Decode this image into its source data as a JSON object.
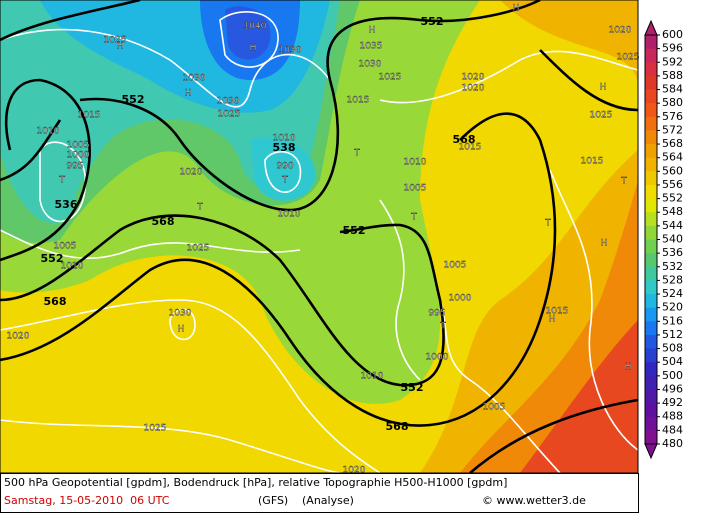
{
  "map": {
    "labels": [
      "552",
      "H",
      "H",
      "1040",
      "H",
      "1030",
      "1025",
      "H",
      "1035",
      "1030",
      "1030",
      "H",
      "552",
      "1030",
      "1025",
      "1015",
      "1010",
      "1005",
      "1000",
      "995",
      "T",
      "536",
      "538",
      "1010",
      "990",
      "T",
      "1020",
      "T",
      "1010",
      "568",
      "1025",
      "552",
      "1005",
      "552",
      "1010",
      "568",
      "1030",
      "H",
      "1020",
      "1010",
      "552",
      "568",
      "1025",
      "1020",
      "T",
      "1015",
      "1025",
      "1020",
      "1020",
      "H",
      "1025",
      "568",
      "1015",
      "1010",
      "1005",
      "T",
      "T",
      "T",
      "H",
      "1005",
      "1000",
      "995",
      "T",
      "1000",
      "H",
      "1015",
      "1005",
      "H",
      "1020",
      "1015",
      "1025"
    ]
  },
  "colorbar": {
    "ticks": [
      600,
      596,
      592,
      588,
      584,
      580,
      576,
      572,
      568,
      564,
      560,
      556,
      552,
      548,
      544,
      540,
      536,
      532,
      528,
      524,
      520,
      516,
      512,
      508,
      504,
      500,
      496,
      492,
      488,
      484,
      480
    ],
    "colors": [
      "#b0206a",
      "#c8285a",
      "#d83040",
      "#e03828",
      "#e84820",
      "#f05818",
      "#f07010",
      "#f08808",
      "#f0a000",
      "#f0b400",
      "#f0c800",
      "#f0dc00",
      "#e0e800",
      "#b8e020",
      "#90d838",
      "#70d050",
      "#58c870",
      "#40c8a0",
      "#30c8c8",
      "#20b8e0",
      "#1898f0",
      "#1878f0",
      "#2058e0",
      "#2840d0",
      "#3028c0",
      "#4020b0",
      "#5018a8",
      "#6010a0",
      "#701098",
      "#801090"
    ]
  },
  "footer": {
    "line1": "500 hPa Geopotential [gpdm], Bodendruck [hPa], relative Topographie H500-H1000 [gpdm]",
    "date": "Samstag, 15-05-2010  06 UTC",
    "model": "(GFS)",
    "run": "(Analyse)",
    "credit": "© www.wetter3.de"
  }
}
